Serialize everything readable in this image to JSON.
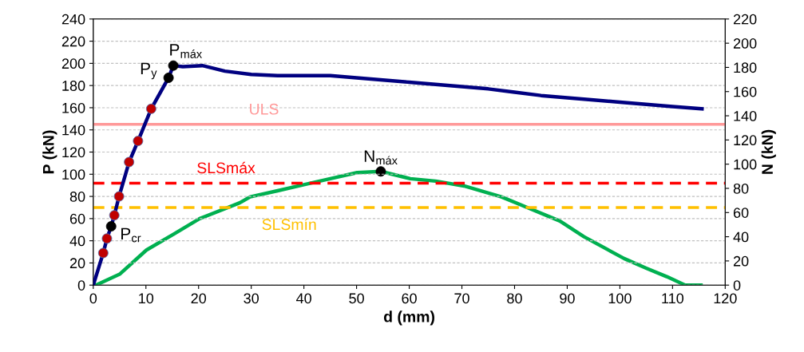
{
  "chart_data": {
    "type": "line",
    "xlabel": "d (mm)",
    "ylabel": "P (kN)",
    "y2label": "N (kN)",
    "xlim": [
      0,
      120
    ],
    "xticks": [
      0,
      10,
      20,
      30,
      40,
      50,
      60,
      70,
      80,
      90,
      100,
      110,
      120
    ],
    "ylim": [
      0,
      240
    ],
    "yticks": [
      0,
      20,
      40,
      60,
      80,
      100,
      120,
      140,
      160,
      180,
      200,
      220,
      240
    ],
    "y2lim": [
      0,
      220
    ],
    "y2ticks": [
      0,
      20,
      40,
      60,
      80,
      100,
      120,
      140,
      160,
      180,
      200,
      220
    ],
    "grid": "y",
    "legend": false,
    "marker": "none",
    "line_style": "solid",
    "series": [
      {
        "color": "#000080",
        "x": [
          0,
          1.9,
          2.6,
          3.4,
          4.0,
          4.9,
          6.8,
          8.5,
          11.0,
          14.3,
          15.2,
          17,
          20.7,
          25,
          30,
          35,
          40,
          45,
          50,
          55,
          60,
          65,
          70,
          75,
          80,
          85,
          90,
          95,
          100,
          105,
          110,
          115.6
        ],
        "values": [
          0,
          29,
          42,
          53,
          63,
          80,
          111,
          130,
          159,
          187,
          198,
          197,
          198,
          193,
          190,
          189,
          189,
          189,
          187,
          185,
          183,
          181,
          179,
          177,
          174,
          171,
          169,
          167,
          165,
          163,
          161,
          159
        ]
      },
      {
        "axis": "y2",
        "color": "#00b050",
        "x": [
          0,
          0.5,
          5,
          10.1,
          15.2,
          20.2,
          27.8,
          29.8,
          35,
          40,
          45,
          50.1,
          54.6,
          60.2,
          65,
          70.4,
          77.5,
          82.5,
          88.6,
          93.2,
          100.8,
          105,
          108.9,
          112.4,
          115.4
        ],
        "values": [
          0,
          0,
          9,
          29,
          42,
          55,
          68,
          73,
          78,
          83,
          88,
          93,
          94,
          88,
          86,
          82,
          73,
          64,
          53,
          40,
          22,
          14,
          7,
          0,
          0
        ]
      },
      {
        "type": "scatter",
        "color": "#c00000",
        "marker": "circle",
        "x": [
          1.9,
          2.6,
          4.0,
          4.9,
          6.8,
          8.5,
          11.0
        ],
        "values": [
          29,
          42,
          63,
          80,
          111,
          130,
          159
        ]
      },
      {
        "type": "scatter",
        "color": "#000000",
        "marker": "circle",
        "x": [
          3.4,
          14.3,
          15.2
        ],
        "values": [
          53,
          187,
          198
        ]
      },
      {
        "type": "scatter",
        "axis": "y2",
        "color": "#000000",
        "marker": "circle",
        "x": [
          54.6
        ],
        "values": [
          94
        ]
      }
    ],
    "ref_lines": [
      {
        "axis": "y",
        "value": 145,
        "label": "ULS",
        "color": "#ff9999",
        "line_style": "solid"
      },
      {
        "axis": "y",
        "value": 92,
        "label": "SLSmáx",
        "color": "#ff0000",
        "line_style": "dashed"
      },
      {
        "axis": "y",
        "value": 70,
        "label": "SLSmín",
        "color": "#ffc000",
        "line_style": "dashed"
      }
    ],
    "annotations": [
      {
        "text": "P$_{cr}$",
        "x": 3.4,
        "y": 53
      },
      {
        "text": "P$_{y}$",
        "x": 14.3,
        "y": 187
      },
      {
        "text": "P$_{máx}$",
        "x": 15.2,
        "y": 198
      },
      {
        "text": "N$_{máx}$",
        "x": 54.6,
        "y": 102
      }
    ]
  }
}
